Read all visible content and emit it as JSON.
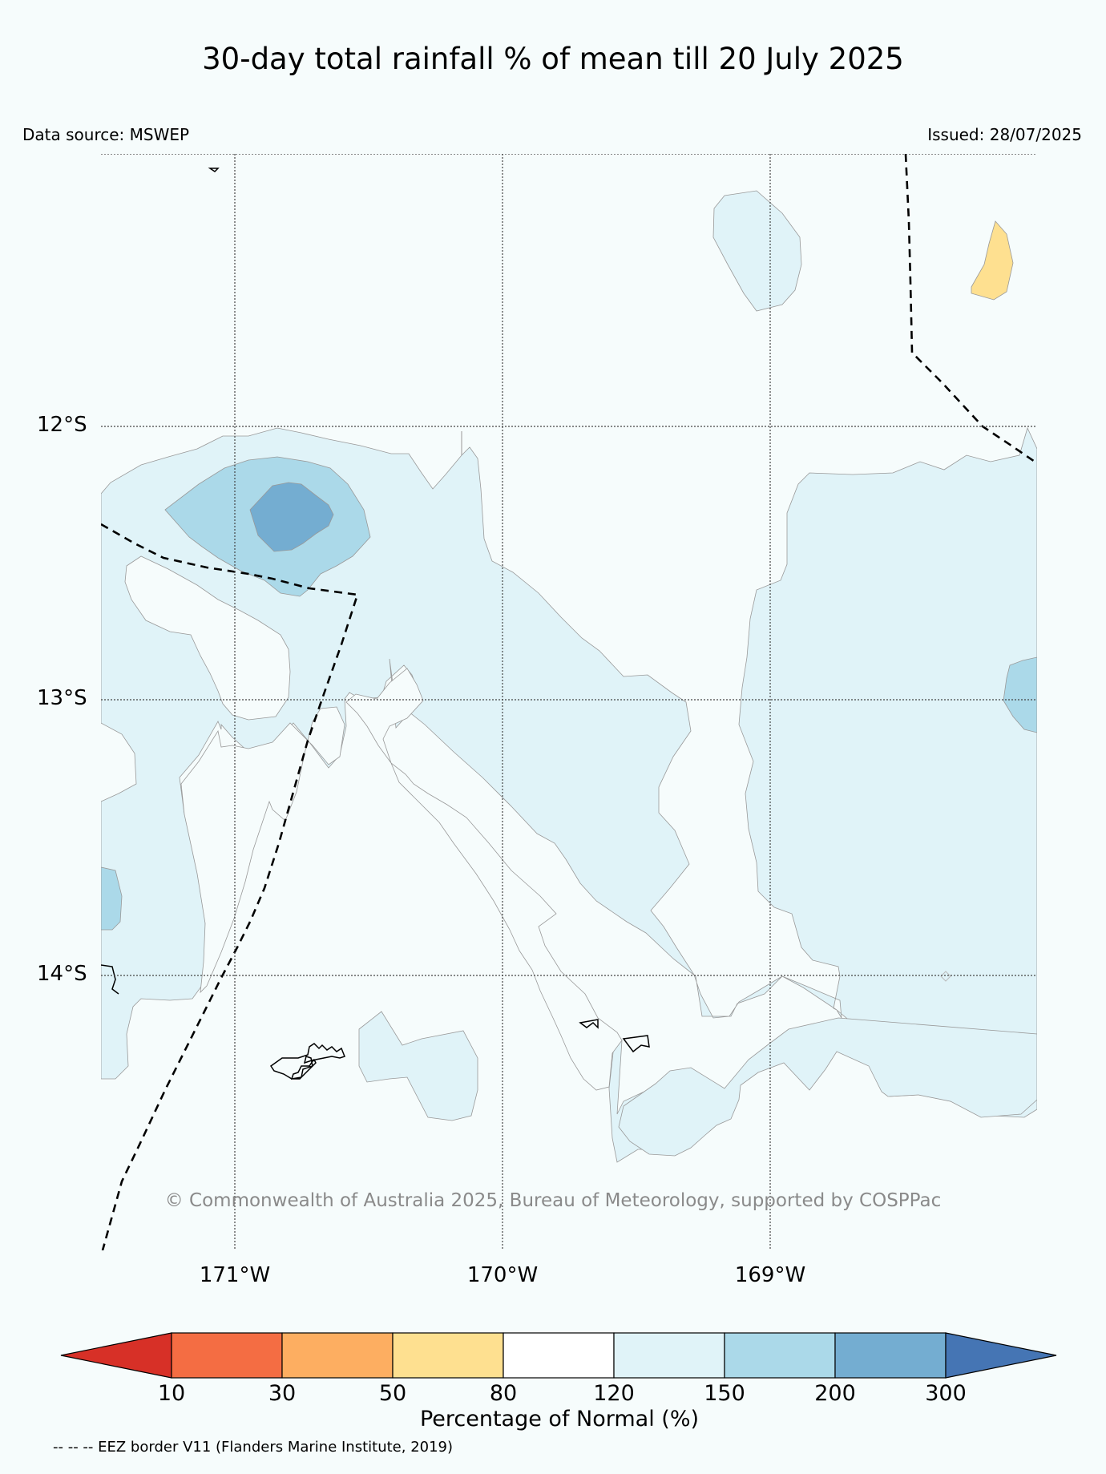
{
  "title": "30-day total rainfall % of mean till 20 July 2025",
  "data_source": "Data source: MSWEP",
  "issued": "Issued: 28/07/2025",
  "latitude_labels": [
    "12°S",
    "13°S",
    "14°S"
  ],
  "longitude_labels": [
    "171°W",
    "170°W",
    "169°W"
  ],
  "copyright": "© Commonwealth of Australia 2025, Bureau of Meteorology, supported by COSPPac",
  "colorbar": {
    "title": "Percentage of Normal (%)",
    "tick_labels": [
      "10",
      "30",
      "50",
      "80",
      "120",
      "150",
      "200",
      "300"
    ],
    "bins": [
      {
        "range": "<10",
        "color": "#d73027"
      },
      {
        "range": "10-30",
        "color": "#f46d43"
      },
      {
        "range": "30-50",
        "color": "#fdae61"
      },
      {
        "range": "50-80",
        "color": "#fee090"
      },
      {
        "range": "80-120",
        "color": "#ffffff"
      },
      {
        "range": "120-150",
        "color": "#e0f3f8"
      },
      {
        "range": "150-200",
        "color": "#abd9e9"
      },
      {
        "range": "200-300",
        "color": "#74add1"
      },
      {
        "range": ">300",
        "color": "#4575b4"
      }
    ]
  },
  "eez_note": "-- -- -- EEZ border V11 (Flanders Marine Institute, 2019)",
  "map": {
    "extent": {
      "lon_min": -171.5,
      "lon_max": -168.0,
      "lat_min": -14.99,
      "lat_max": -11.0
    },
    "gridlines": {
      "longitudes": [
        -171,
        -170,
        -169
      ],
      "latitudes": [
        -12,
        -13,
        -14
      ],
      "style": "dotted"
    },
    "background_category": "80-120"
  }
}
